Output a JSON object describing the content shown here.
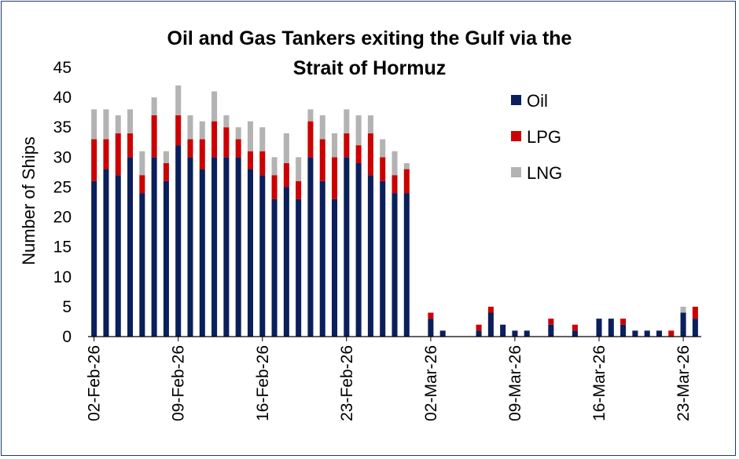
{
  "chart_data": {
    "type": "bar",
    "stacked": true,
    "title": "Oil and Gas Tankers  exiting the Gulf via the Strait of Hormuz",
    "title_lines": [
      "Oil and Gas Tankers  exiting the Gulf via the",
      "Strait of Hormuz"
    ],
    "xlabel": "",
    "ylabel": "Number of Ships",
    "ylim": [
      0,
      45
    ],
    "yticks": [
      0,
      5,
      10,
      15,
      20,
      25,
      30,
      35,
      40,
      45
    ],
    "grid": false,
    "legend_position": "right",
    "x_tick_labels": [
      {
        "index": 0,
        "label": "02-Feb-26"
      },
      {
        "index": 7,
        "label": "09-Feb-26"
      },
      {
        "index": 14,
        "label": "16-Feb-26"
      },
      {
        "index": 21,
        "label": "23-Feb-26"
      },
      {
        "index": 28,
        "label": "02-Mar-26"
      },
      {
        "index": 35,
        "label": "09-Mar-26"
      },
      {
        "index": 42,
        "label": "16-Mar-26"
      },
      {
        "index": 49,
        "label": "23-Mar-26"
      }
    ],
    "categories": [
      "02-Feb-26",
      "03-Feb-26",
      "04-Feb-26",
      "05-Feb-26",
      "06-Feb-26",
      "07-Feb-26",
      "08-Feb-26",
      "09-Feb-26",
      "10-Feb-26",
      "11-Feb-26",
      "12-Feb-26",
      "13-Feb-26",
      "14-Feb-26",
      "15-Feb-26",
      "16-Feb-26",
      "17-Feb-26",
      "18-Feb-26",
      "19-Feb-26",
      "20-Feb-26",
      "21-Feb-26",
      "22-Feb-26",
      "23-Feb-26",
      "24-Feb-26",
      "25-Feb-26",
      "26-Feb-26",
      "27-Feb-26",
      "28-Feb-26",
      "01-Mar-26",
      "02-Mar-26",
      "03-Mar-26",
      "04-Mar-26",
      "05-Mar-26",
      "06-Mar-26",
      "07-Mar-26",
      "08-Mar-26",
      "09-Mar-26",
      "10-Mar-26",
      "11-Mar-26",
      "12-Mar-26",
      "13-Mar-26",
      "14-Mar-26",
      "15-Mar-26",
      "16-Mar-26",
      "17-Mar-26",
      "18-Mar-26",
      "19-Mar-26",
      "20-Mar-26",
      "21-Mar-26",
      "22-Mar-26",
      "23-Mar-26",
      "24-Mar-26"
    ],
    "series": [
      {
        "name": "Oil",
        "color": "#0a1f5c",
        "values": [
          26,
          28,
          27,
          30,
          24,
          30,
          26,
          32,
          30,
          28,
          30,
          30,
          30,
          28,
          27,
          23,
          25,
          23,
          30,
          26,
          23,
          30,
          29,
          27,
          26,
          24,
          24,
          0,
          3,
          1,
          0,
          0,
          1,
          4,
          2,
          1,
          1,
          0,
          2,
          0,
          1,
          0,
          3,
          3,
          2,
          1,
          1,
          1,
          0,
          4,
          3
        ]
      },
      {
        "name": "LPG",
        "color": "#cc0000",
        "values": [
          7,
          5,
          7,
          4,
          3,
          7,
          3,
          5,
          3,
          5,
          6,
          5,
          3,
          3,
          4,
          4,
          4,
          3,
          6,
          7,
          7,
          4,
          3,
          7,
          4,
          3,
          4,
          0,
          1,
          0,
          0,
          0,
          1,
          1,
          0,
          0,
          0,
          0,
          1,
          0,
          1,
          0,
          0,
          0,
          1,
          0,
          0,
          0,
          1,
          0,
          2
        ]
      },
      {
        "name": "LNG",
        "color": "#b3b3b3",
        "values": [
          5,
          5,
          3,
          4,
          4,
          3,
          2,
          5,
          4,
          3,
          5,
          2,
          2,
          5,
          4,
          3,
          5,
          4,
          2,
          4,
          4,
          4,
          5,
          3,
          3,
          4,
          1,
          0,
          0,
          0,
          0,
          0,
          0,
          0,
          0,
          0,
          0,
          0,
          0,
          0,
          0,
          0,
          0,
          0,
          0,
          0,
          0,
          0,
          0,
          1,
          0
        ]
      }
    ]
  }
}
